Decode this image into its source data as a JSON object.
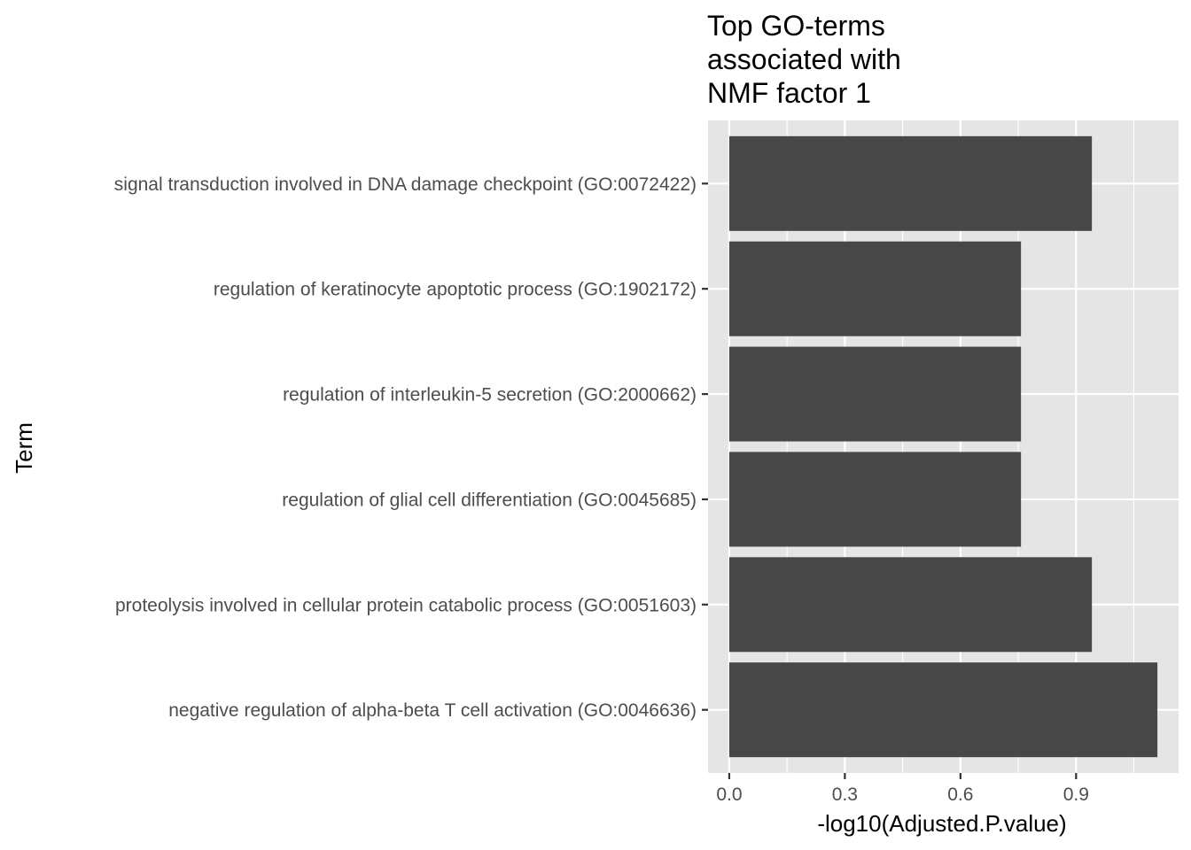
{
  "chart_data": {
    "type": "bar",
    "orientation": "horizontal",
    "title_lines": [
      "Top GO-terms",
      "associated with",
      "NMF factor 1"
    ],
    "xlabel": "-log10(Adjusted.P.value)",
    "ylabel": "Term",
    "categories": [
      "signal transduction involved in DNA damage checkpoint (GO:0072422)",
      "regulation of keratinocyte apoptotic process (GO:1902172)",
      "regulation of interleukin-5 secretion (GO:2000662)",
      "regulation of glial cell differentiation (GO:0045685)",
      "proteolysis involved in cellular protein catabolic process (GO:0051603)",
      "negative regulation of alpha-beta T cell activation (GO:0046636)"
    ],
    "values": [
      0.941,
      0.757,
      0.757,
      0.757,
      0.941,
      1.111
    ],
    "xlim": [
      -0.055,
      1.166
    ],
    "xticks": [
      0.0,
      0.3,
      0.6,
      0.9
    ],
    "xtick_labels": [
      "0.0",
      "0.3",
      "0.6",
      "0.9"
    ],
    "grid": true,
    "colors": {
      "bar": "#474747",
      "panel": "#e5e5e5",
      "grid": "#ffffff",
      "tick_text": "#4d4d4d",
      "tick_mark": "#333333"
    }
  }
}
